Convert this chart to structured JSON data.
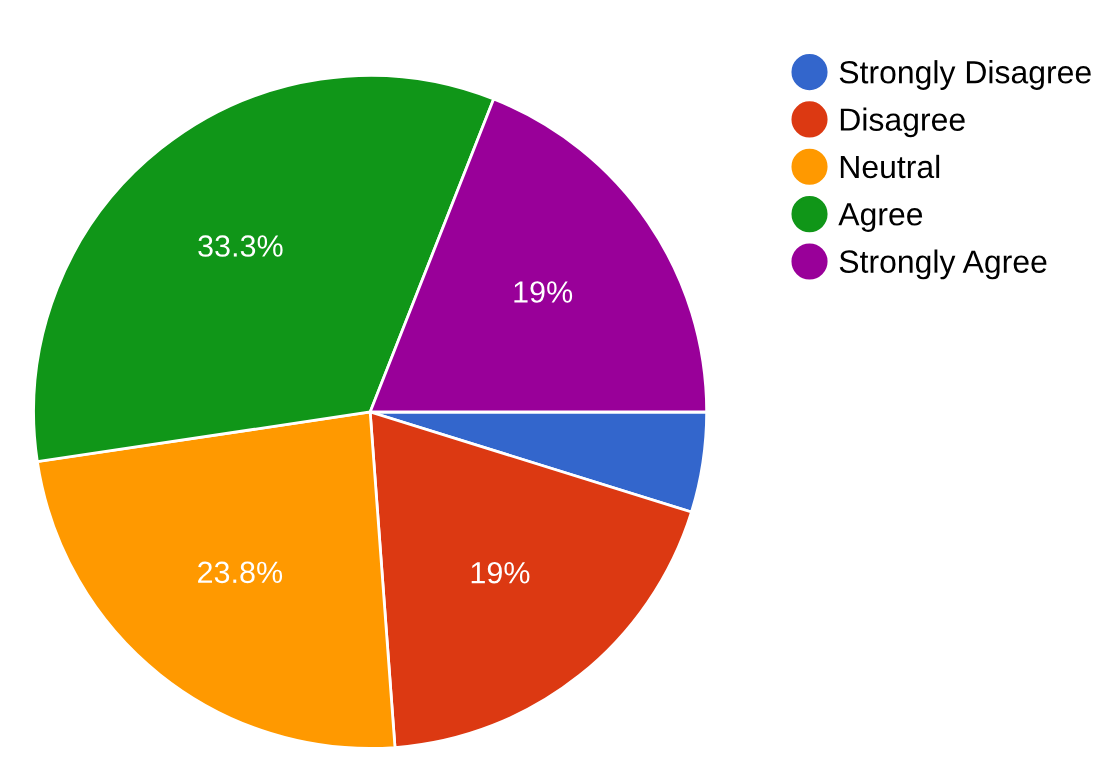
{
  "chart_data": {
    "type": "pie",
    "categories": [
      "Strongly Disagree",
      "Disagree",
      "Neutral",
      "Agree",
      "Strongly Agree"
    ],
    "values": [
      4.8,
      19,
      23.8,
      33.3,
      19
    ],
    "colors": [
      "#3366cc",
      "#dc3912",
      "#ff9900",
      "#109618",
      "#990099"
    ],
    "value_labels": [
      null,
      "19%",
      "23.8%",
      "33.3%",
      "19%"
    ],
    "legend": "right"
  }
}
